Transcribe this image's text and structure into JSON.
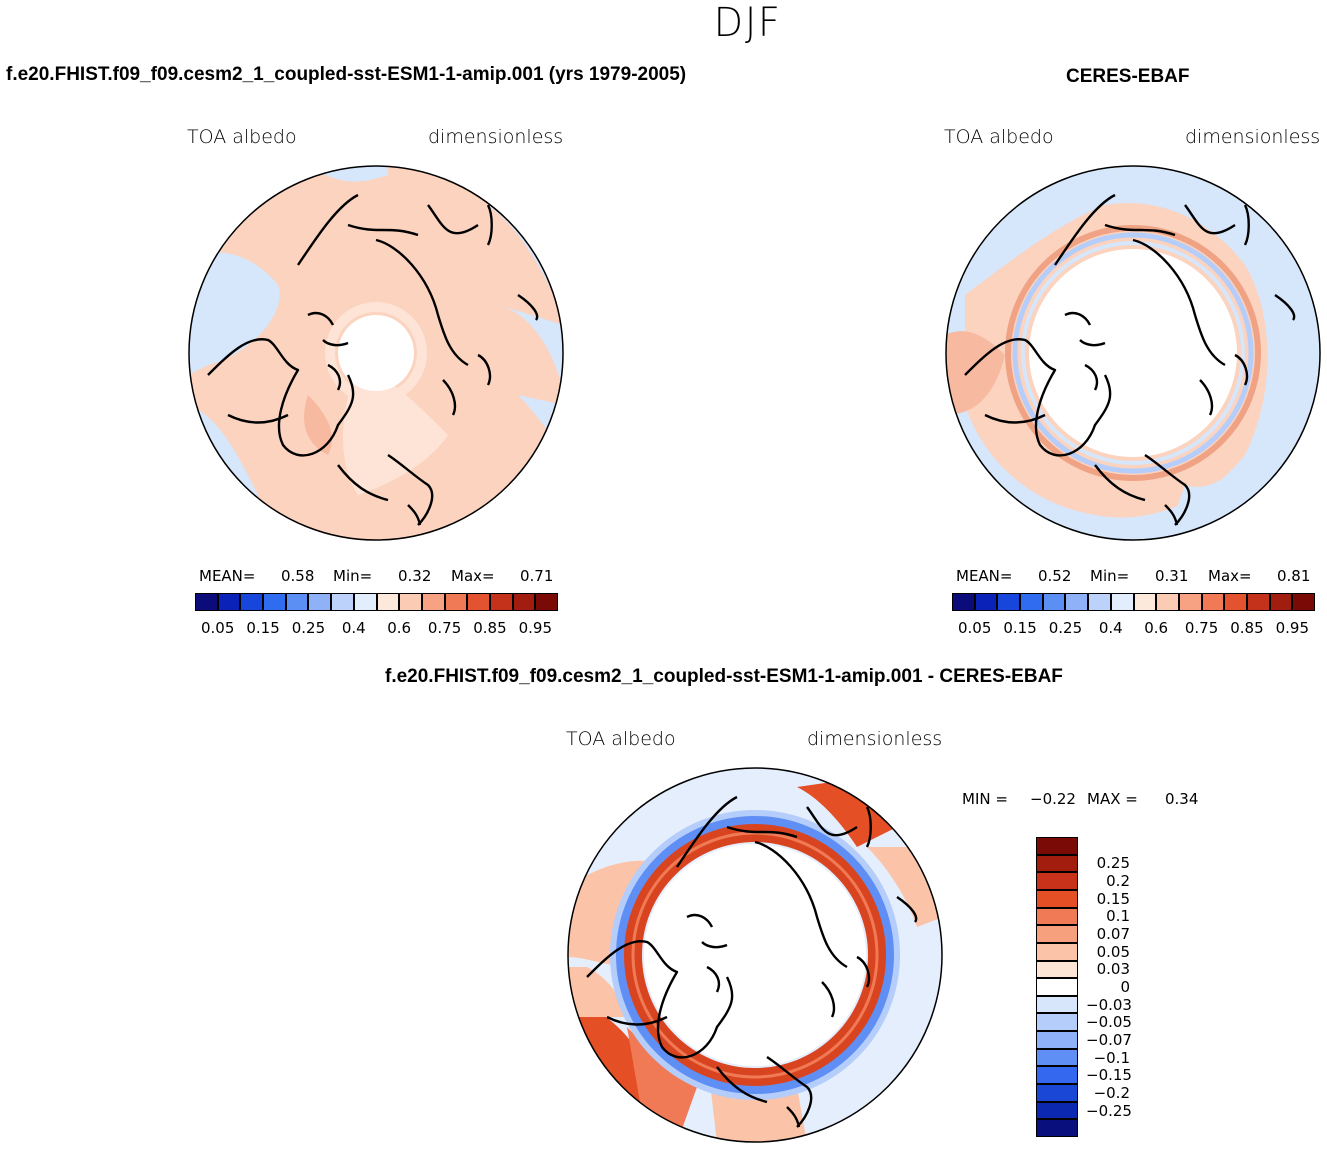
{
  "figure": {
    "season": "DJF"
  },
  "panels": [
    {
      "title": "f.e20.FHIST.f09_f09.cesm2_1_coupled-sst-ESM1-1-amip.001 (yrs 1979-2005)",
      "left_label": "TOA albedo",
      "right_label": "dimensionless",
      "stats": {
        "mean_label": "MEAN=",
        "mean_value": "0.58",
        "min_label": "Min=",
        "min_value": "0.32",
        "max_label": "Max=",
        "max_value": "0.71"
      }
    },
    {
      "title": "CERES-EBAF",
      "left_label": "TOA albedo",
      "right_label": "dimensionless",
      "stats": {
        "mean_label": "MEAN=",
        "mean_value": "0.52",
        "min_label": "Min=",
        "min_value": "0.31",
        "max_label": "Max=",
        "max_value": "0.81"
      }
    },
    {
      "title": "f.e20.FHIST.f09_f09.cesm2_1_coupled-sst-ESM1-1-amip.001 - CERES-EBAF",
      "left_label": "TOA albedo",
      "right_label": "dimensionless",
      "stats": {
        "min_label": "MIN =",
        "min_value": "−0.22",
        "max_label": "MAX =",
        "max_value": "0.34"
      }
    }
  ],
  "colorbars": {
    "absolute": {
      "colors": [
        "#0b0b7a",
        "#0a22b8",
        "#1646dc",
        "#2f6cf0",
        "#5c8ff4",
        "#8fb1f7",
        "#bcd2fb",
        "#e2eefd",
        "#fde9dc",
        "#fbcbb4",
        "#f7a282",
        "#f07a55",
        "#e4532f",
        "#c5321c",
        "#a11d10",
        "#7a0a06"
      ],
      "labels": [
        "0.05",
        "0.15",
        "0.25",
        "0.4",
        "0.6",
        "0.75",
        "0.85",
        "0.95"
      ]
    },
    "difference": {
      "colors": [
        "#7a0a06",
        "#a31d0f",
        "#c8321a",
        "#e44f25",
        "#f07a55",
        "#f7a07e",
        "#fbc4a8",
        "#fde5d6",
        "#ffffff",
        "#d8e6fc",
        "#b4cdfa",
        "#8fb1f7",
        "#5f8ff4",
        "#3468ee",
        "#1a47d6",
        "#0b28b0",
        "#0a0f7e"
      ],
      "labels": [
        "0.25",
        "0.2",
        "0.15",
        "0.1",
        "0.07",
        "0.05",
        "0.03",
        "0",
        "−0.03",
        "−0.05",
        "−0.07",
        "−0.1",
        "−0.15",
        "−0.2",
        "−0.25"
      ]
    }
  },
  "palette": {
    "land_ocean_light_blue": "#d6e6fb",
    "light_salmon": "#fbd3bf",
    "salmon": "#f7b9a0",
    "ring_red": "#d8441f",
    "coast": "#000000"
  }
}
